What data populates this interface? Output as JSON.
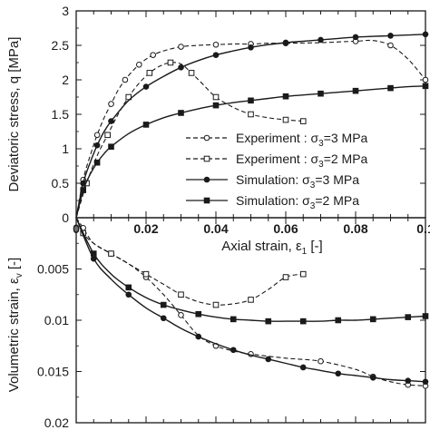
{
  "chart_data": [
    {
      "type": "line",
      "panel": "top",
      "ylabel": "Deviatoric stress, q [MPa]",
      "ylim": [
        0,
        3
      ],
      "xlim": [
        0,
        0.1
      ],
      "yticks": [
        "0",
        "0.5",
        "1",
        "1.5",
        "2",
        "2.5",
        "3"
      ],
      "legend_placement": "center-right",
      "series": [
        {
          "name": "Experiment : σ3=3 MPa",
          "style": "dashed",
          "marker": "circle-open",
          "x": [
            0,
            0.002,
            0.004,
            0.006,
            0.008,
            0.01,
            0.012,
            0.014,
            0.016,
            0.018,
            0.02,
            0.022,
            0.025,
            0.03,
            0.035,
            0.04,
            0.045,
            0.05,
            0.055,
            0.06,
            0.07,
            0.08,
            0.085,
            0.09,
            0.095,
            0.1
          ],
          "y": [
            0,
            0.55,
            0.9,
            1.2,
            1.45,
            1.65,
            1.85,
            2.0,
            2.12,
            2.22,
            2.3,
            2.36,
            2.42,
            2.48,
            2.5,
            2.51,
            2.52,
            2.52,
            2.53,
            2.53,
            2.54,
            2.56,
            2.57,
            2.5,
            2.3,
            2.0
          ]
        },
        {
          "name": "Experiment : σ3=2 MPa",
          "style": "dashed",
          "marker": "square-open",
          "x": [
            0,
            0.003,
            0.006,
            0.009,
            0.012,
            0.015,
            0.018,
            0.021,
            0.024,
            0.027,
            0.03,
            0.033,
            0.036,
            0.04,
            0.045,
            0.05,
            0.055,
            0.06,
            0.065
          ],
          "y": [
            0,
            0.5,
            0.9,
            1.2,
            1.5,
            1.75,
            1.95,
            2.1,
            2.2,
            2.25,
            2.23,
            2.1,
            1.95,
            1.75,
            1.6,
            1.5,
            1.45,
            1.42,
            1.4
          ]
        },
        {
          "name": "Simulation: σ3=3 MPa",
          "style": "solid",
          "marker": "circle-filled",
          "x": [
            0,
            0.002,
            0.004,
            0.006,
            0.008,
            0.01,
            0.015,
            0.02,
            0.025,
            0.03,
            0.035,
            0.04,
            0.045,
            0.05,
            0.055,
            0.06,
            0.065,
            0.07,
            0.075,
            0.08,
            0.085,
            0.09,
            0.095,
            0.1
          ],
          "y": [
            0,
            0.5,
            0.8,
            1.05,
            1.25,
            1.4,
            1.7,
            1.9,
            2.05,
            2.18,
            2.28,
            2.36,
            2.42,
            2.47,
            2.51,
            2.54,
            2.56,
            2.58,
            2.6,
            2.62,
            2.63,
            2.64,
            2.65,
            2.66
          ]
        },
        {
          "name": "Simulation: σ3=2 MPa",
          "style": "solid",
          "marker": "square-filled",
          "x": [
            0,
            0.002,
            0.004,
            0.006,
            0.008,
            0.01,
            0.015,
            0.02,
            0.025,
            0.03,
            0.035,
            0.04,
            0.045,
            0.05,
            0.055,
            0.06,
            0.065,
            0.07,
            0.075,
            0.08,
            0.085,
            0.09,
            0.095,
            0.1
          ],
          "y": [
            0,
            0.4,
            0.63,
            0.8,
            0.93,
            1.03,
            1.22,
            1.35,
            1.45,
            1.52,
            1.58,
            1.63,
            1.67,
            1.7,
            1.73,
            1.76,
            1.78,
            1.8,
            1.82,
            1.84,
            1.86,
            1.88,
            1.9,
            1.91
          ]
        }
      ]
    },
    {
      "type": "line",
      "panel": "bottom",
      "xlabel": "Axial strain, ε1 [-]",
      "ylabel": "Volumetric strain, εv [-]",
      "xlim": [
        0,
        0.1
      ],
      "ylim": [
        0,
        0.02
      ],
      "y_inverted": true,
      "xticks": [
        "0",
        "0.02",
        "0.04",
        "0.06",
        "0.08",
        "0.1"
      ],
      "yticks": [
        "0.005",
        "0.01",
        "0.015",
        "0.02"
      ],
      "series": [
        {
          "name": "Experiment : σ3=3 MPa",
          "style": "dashed",
          "marker": "circle-open",
          "x": [
            0,
            0.002,
            0.005,
            0.01,
            0.015,
            0.02,
            0.025,
            0.03,
            0.035,
            0.04,
            0.045,
            0.05,
            0.06,
            0.07,
            0.08,
            0.085,
            0.09,
            0.095,
            0.1
          ],
          "y": [
            0,
            0.001,
            0.0025,
            0.0035,
            0.0045,
            0.0058,
            0.0075,
            0.0095,
            0.0115,
            0.0125,
            0.013,
            0.0133,
            0.0137,
            0.014,
            0.0148,
            0.0155,
            0.016,
            0.0163,
            0.0164
          ]
        },
        {
          "name": "Experiment : σ3=2 MPa",
          "style": "dashed",
          "marker": "square-open",
          "x": [
            0,
            0.002,
            0.005,
            0.01,
            0.015,
            0.02,
            0.025,
            0.03,
            0.035,
            0.04,
            0.045,
            0.05,
            0.055,
            0.06,
            0.065
          ],
          "y": [
            0,
            0.0015,
            0.0025,
            0.0035,
            0.0045,
            0.0055,
            0.0065,
            0.0075,
            0.0082,
            0.0085,
            0.0084,
            0.008,
            0.007,
            0.0058,
            0.0055
          ]
        },
        {
          "name": "Simulation: σ3=3 MPa",
          "style": "solid",
          "marker": "circle-filled",
          "x": [
            0,
            0.005,
            0.01,
            0.015,
            0.02,
            0.025,
            0.03,
            0.035,
            0.04,
            0.045,
            0.05,
            0.055,
            0.06,
            0.065,
            0.07,
            0.075,
            0.08,
            0.085,
            0.09,
            0.095,
            0.1
          ],
          "y": [
            0,
            0.004,
            0.006,
            0.0075,
            0.0088,
            0.0098,
            0.0108,
            0.0116,
            0.0123,
            0.0129,
            0.0134,
            0.0138,
            0.0142,
            0.0146,
            0.0149,
            0.0152,
            0.0154,
            0.0156,
            0.0158,
            0.0159,
            0.016
          ]
        },
        {
          "name": "Simulation: σ3=2 MPa",
          "style": "solid",
          "marker": "square-filled",
          "x": [
            0,
            0.005,
            0.01,
            0.015,
            0.02,
            0.025,
            0.03,
            0.035,
            0.04,
            0.045,
            0.05,
            0.055,
            0.06,
            0.065,
            0.07,
            0.075,
            0.08,
            0.085,
            0.09,
            0.095,
            0.1
          ],
          "y": [
            0,
            0.0035,
            0.0055,
            0.0068,
            0.0078,
            0.0085,
            0.009,
            0.0094,
            0.0097,
            0.0099,
            0.01,
            0.0101,
            0.0101,
            0.0101,
            0.0101,
            0.01,
            0.01,
            0.0099,
            0.0098,
            0.0097,
            0.0096
          ]
        }
      ]
    }
  ],
  "legend": {
    "items": [
      {
        "prefix": "Experiment : ",
        "sigma": "σ",
        "sub": "3",
        "suffix": "=3 MPa",
        "style": "dashed",
        "marker": "circle-open"
      },
      {
        "prefix": "Experiment : ",
        "sigma": "σ",
        "sub": "3",
        "suffix": "=2 MPa",
        "style": "dashed",
        "marker": "square-open"
      },
      {
        "prefix": "Simulation: ",
        "sigma": "σ",
        "sub": "3",
        "suffix": "=3 MPa",
        "style": "solid",
        "marker": "circle-filled"
      },
      {
        "prefix": "Simulation: ",
        "sigma": "σ",
        "sub": "3",
        "suffix": "=2 MPa",
        "style": "solid",
        "marker": "square-filled"
      }
    ]
  },
  "labels": {
    "top_ylabel": "Deviatoric stress, q [MPa]",
    "bottom_ylabel_main": "Volumetric strain, ε",
    "bottom_ylabel_sub": "v",
    "bottom_ylabel_tail": " [-]",
    "xlabel_main": "Axial strain, ε",
    "xlabel_sub": "1",
    "xlabel_tail": " [-]"
  },
  "colors": {
    "ink": "#1a1a1a",
    "background": "#ffffff"
  }
}
